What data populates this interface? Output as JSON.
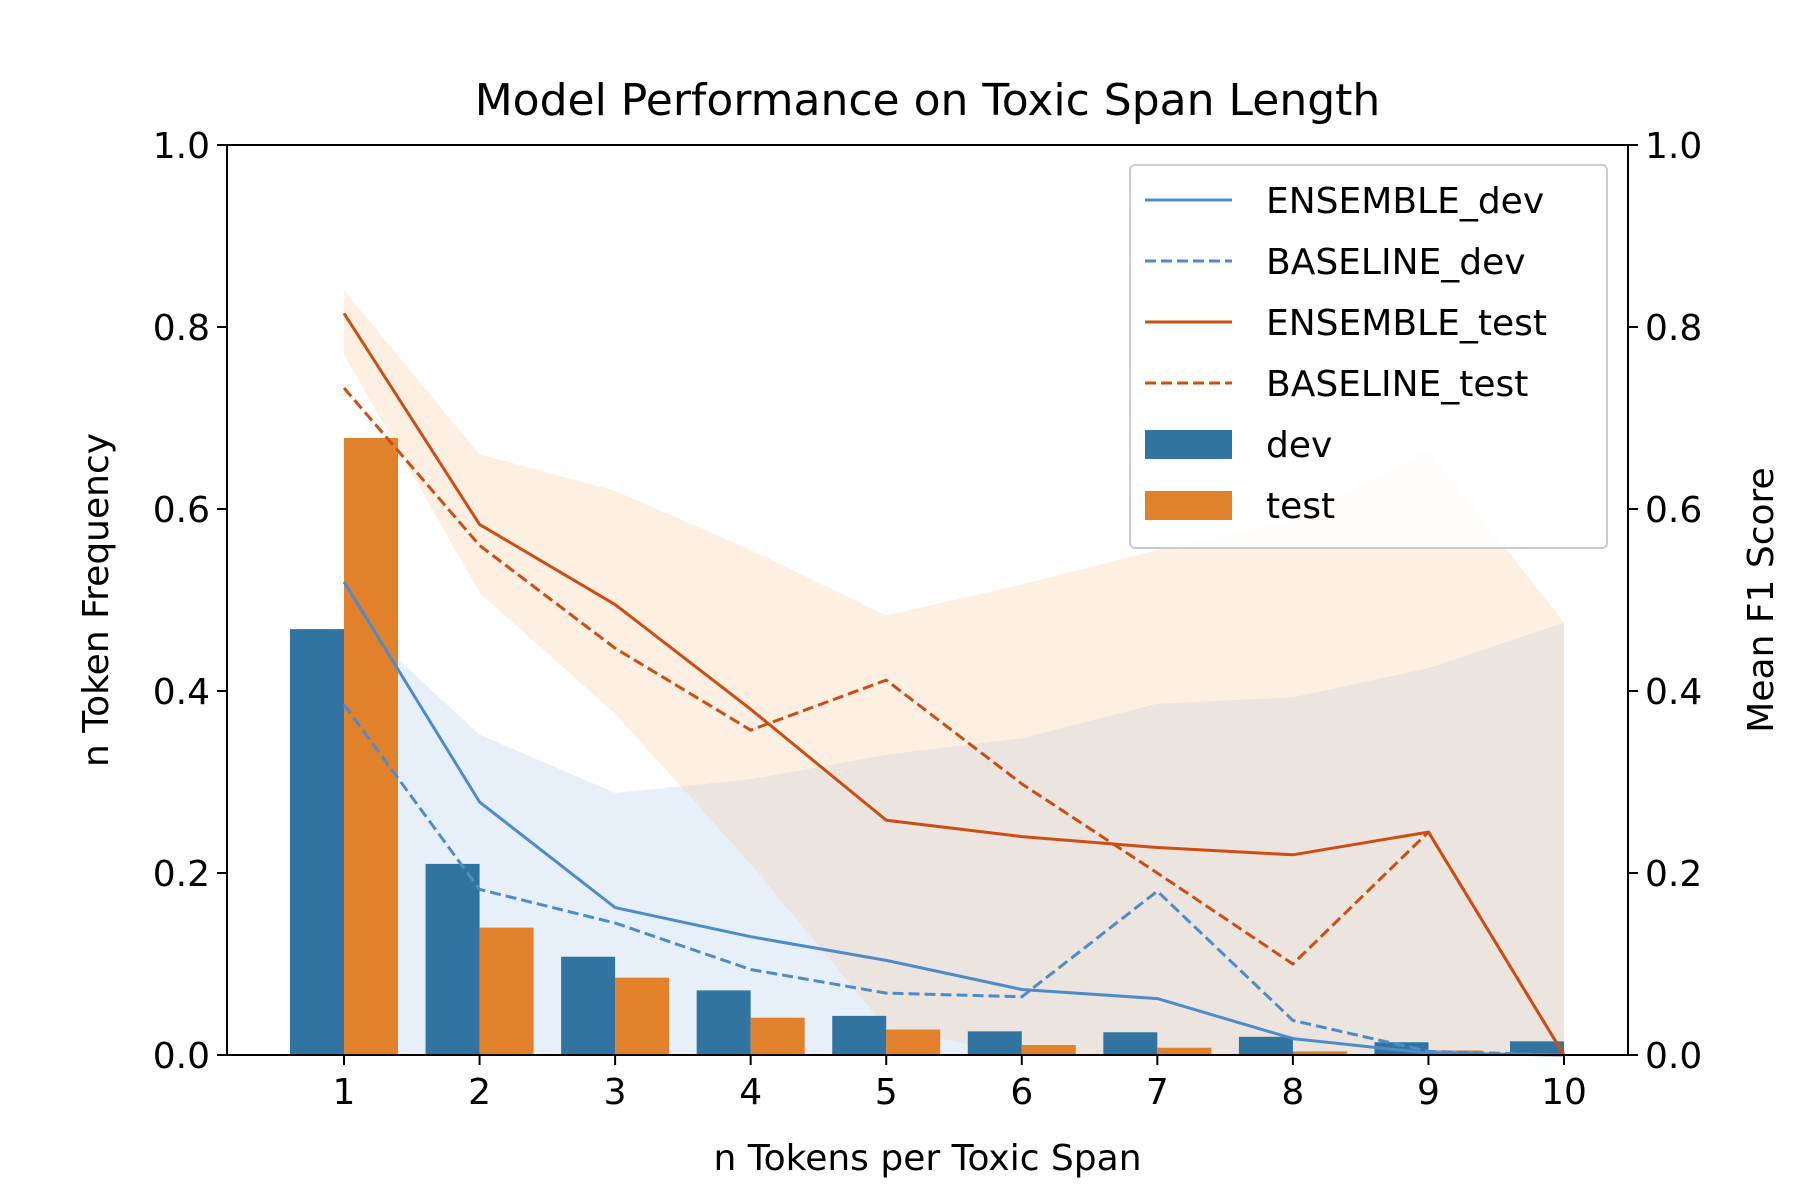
{
  "chart_data": {
    "type": "bar",
    "title": "Model Performance on Toxic Span Length",
    "xlabel": "n Tokens per Toxic Span",
    "ylabel": "n Token Frequency",
    "ylabel_right": "Mean F1 Score",
    "categories": [
      "1",
      "2",
      "3",
      "4",
      "5",
      "6",
      "7",
      "8",
      "9",
      "10"
    ],
    "ylim": [
      0,
      1.0
    ],
    "ylim_right": [
      0,
      1.0
    ],
    "yticks": [
      "0.0",
      "0.2",
      "0.4",
      "0.6",
      "0.8",
      "1.0"
    ],
    "yticks_right": [
      "0.0",
      "0.2",
      "0.4",
      "0.6",
      "0.8",
      "1.0"
    ],
    "grid": false,
    "legend_position": "top-right",
    "bars": [
      {
        "name": "dev",
        "color": "#3274a1",
        "values": [
          0.468,
          0.21,
          0.108,
          0.071,
          0.043,
          0.026,
          0.025,
          0.02,
          0.014,
          0.015
        ]
      },
      {
        "name": "test",
        "color": "#e1812c",
        "values": [
          0.678,
          0.14,
          0.085,
          0.041,
          0.028,
          0.011,
          0.008,
          0.004,
          0.005,
          0.0
        ]
      }
    ],
    "lines": [
      {
        "name": "ENSEMBLE_dev",
        "color": "#4e8cc9",
        "dash": "solid",
        "values": [
          0.52,
          0.278,
          0.162,
          0.13,
          0.104,
          0.072,
          0.062,
          0.018,
          0.002,
          0.0
        ]
      },
      {
        "name": "BASELINE_dev",
        "color": "#4e8cc9",
        "dash": "dashed",
        "values": [
          0.385,
          0.182,
          0.145,
          0.094,
          0.068,
          0.064,
          0.18,
          0.038,
          0.004,
          0.0
        ]
      },
      {
        "name": "ENSEMBLE_test",
        "color": "#cc4e13",
        "dash": "solid",
        "values": [
          0.815,
          0.583,
          0.495,
          0.38,
          0.258,
          0.24,
          0.228,
          0.22,
          0.245,
          0.0
        ]
      },
      {
        "name": "BASELINE_test",
        "color": "#cc4e13",
        "dash": "dashed",
        "values": [
          0.733,
          0.56,
          0.447,
          0.357,
          0.412,
          0.298,
          0.2,
          0.1,
          0.245,
          0.0
        ]
      }
    ],
    "bands": [
      {
        "series": "dev",
        "color": "#a9c8e8",
        "opacity": 0.28,
        "upper": [
          0.49,
          0.352,
          0.288,
          0.303,
          0.33,
          0.348,
          0.386,
          0.393,
          0.425,
          0.475
        ],
        "lower": [
          0.0,
          0.0,
          0.0,
          0.0,
          0.0,
          0.0,
          0.0,
          0.0,
          0.0,
          0.0
        ]
      },
      {
        "series": "test",
        "color": "#fdc59a",
        "opacity": 0.28,
        "upper": [
          0.84,
          0.66,
          0.62,
          0.555,
          0.483,
          0.517,
          0.555,
          0.587,
          0.665,
          0.475
        ],
        "lower": [
          0.77,
          0.508,
          0.375,
          0.21,
          0.03,
          0.0,
          0.0,
          0.0,
          0.0,
          0.0
        ]
      }
    ]
  }
}
